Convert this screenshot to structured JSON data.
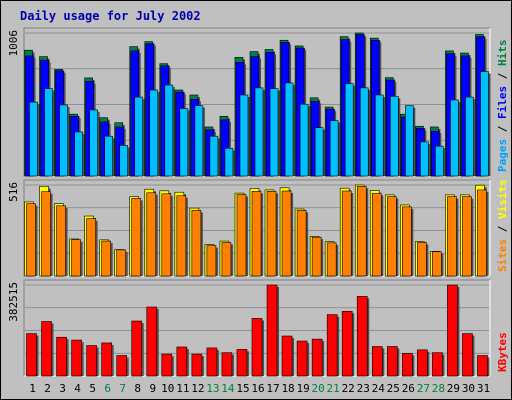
{
  "chart_data": {
    "type": "bar",
    "title": "Daily usage for July 2002",
    "categories": [
      "1",
      "2",
      "3",
      "4",
      "5",
      "6",
      "7",
      "8",
      "9",
      "10",
      "11",
      "12",
      "13",
      "14",
      "15",
      "16",
      "17",
      "18",
      "19",
      "20",
      "21",
      "22",
      "23",
      "24",
      "25",
      "26",
      "27",
      "28",
      "29",
      "30",
      "31"
    ],
    "weekend_days": [
      6,
      7,
      13,
      14,
      20,
      21,
      27,
      28
    ],
    "panels": [
      {
        "name": "hits-files-pages",
        "max_label": "1006",
        "ylim": [
          0,
          1006
        ],
        "axis_labels": [
          {
            "text": "Pages",
            "color": "#00a0ff"
          },
          {
            "text": " / ",
            "color": "#000000"
          },
          {
            "text": "Files",
            "color": "#0000ff"
          },
          {
            "text": " / ",
            "color": "#000000"
          },
          {
            "text": "Hits",
            "color": "#008040"
          }
        ],
        "series": [
          {
            "name": "Hits",
            "color": "#008040",
            "values": [
              885,
              840,
              750,
              435,
              690,
              410,
              375,
              910,
              945,
              790,
              605,
              570,
              345,
              420,
              835,
              875,
              890,
              955,
              915,
              550,
              485,
              980,
              1006,
              970,
              692,
              435,
              350,
              345,
              880,
              865,
              995
            ]
          },
          {
            "name": "Files",
            "color": "#0000ff",
            "values": [
              845,
              815,
              740,
              420,
              665,
              380,
              345,
              880,
              930,
              775,
              590,
              540,
              325,
              395,
              800,
              840,
              870,
              940,
              900,
              525,
              470,
              960,
              995,
              955,
              675,
              415,
              335,
              315,
              860,
              845,
              980
            ]
          },
          {
            "name": "Pages",
            "color": "#00c0ff",
            "values": [
              520,
              615,
              500,
              310,
              465,
              280,
              215,
              555,
              605,
              640,
              475,
              495,
              280,
              195,
              570,
              620,
              615,
              655,
              505,
              340,
              390,
              650,
              620,
              570,
              560,
              495,
              240,
              210,
              535,
              555,
              735
            ]
          }
        ]
      },
      {
        "name": "visits-sites",
        "max_label": "516",
        "ylim": [
          0,
          516
        ],
        "axis_labels": [
          {
            "text": "Sites",
            "color": "#ff8000"
          },
          {
            "text": " / ",
            "color": "#000000"
          },
          {
            "text": "Visits",
            "color": "#ffff00"
          }
        ],
        "series": [
          {
            "name": "Visits",
            "color": "#ffff00",
            "values": [
              420,
              508,
              410,
              210,
              340,
              205,
              150,
              450,
              492,
              483,
              475,
              385,
              178,
              198,
              470,
              496,
              488,
              500,
              380,
              225,
              195,
              498,
              516,
              484,
              460,
              403,
              195,
              140,
              460,
              460,
              515
            ]
          },
          {
            "name": "Sites",
            "color": "#ff8000",
            "values": [
              410,
              478,
              398,
              206,
              325,
              198,
              148,
              440,
              472,
              466,
              455,
              372,
              172,
              190,
              462,
              480,
              480,
              482,
              372,
              220,
              188,
              482,
              508,
              468,
              450,
              392,
              190,
              138,
              450,
              450,
              488
            ]
          }
        ]
      },
      {
        "name": "kbytes",
        "max_label": "382515",
        "ylim": [
          0,
          382515
        ],
        "axis_labels": [
          {
            "text": "KBytes",
            "color": "#ff0000"
          }
        ],
        "series": [
          {
            "name": "KBytes",
            "color": "#ff0000",
            "values": [
              178000,
              229000,
              163000,
              151000,
              128000,
              139000,
              86000,
              231000,
              290000,
              92000,
              122000,
              92000,
              118000,
              98000,
              112000,
              242000,
              382515,
              168000,
              147000,
              155000,
              258000,
              272000,
              335000,
              124000,
              124000,
              95000,
              110000,
              98000,
              382515,
              178000,
              86000
            ]
          }
        ]
      }
    ]
  }
}
